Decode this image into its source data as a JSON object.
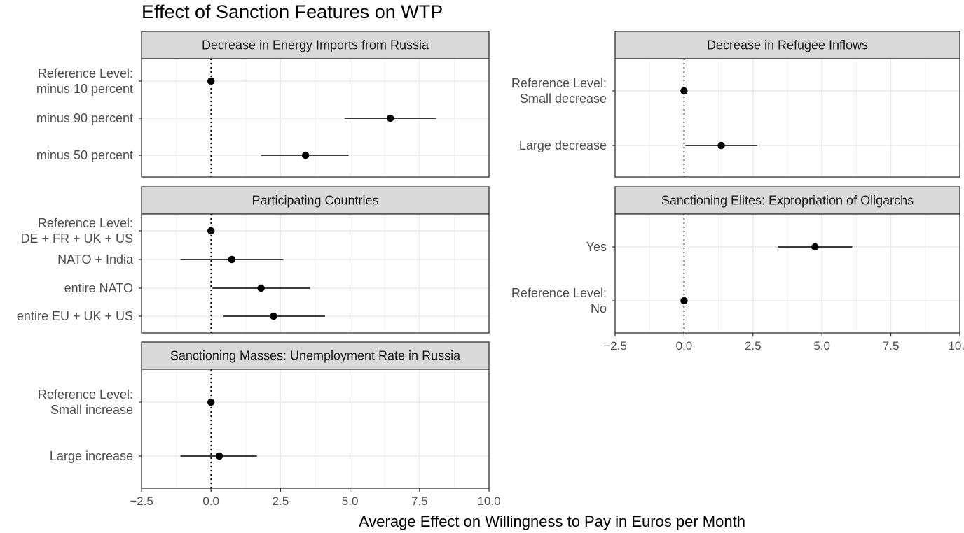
{
  "chart_data": {
    "type": "scatter",
    "subtype": "coefficient plot with confidence intervals (faceted)",
    "title": "Effect of Sanction Features on WTP",
    "xlabel": "Average Effect on Willingness to Pay in Euros per Month",
    "xlim": [
      -2.5,
      10.0
    ],
    "x_ticks": [
      -2.5,
      0.0,
      2.5,
      5.0,
      7.5,
      10.0
    ],
    "x_tick_labels": [
      "−2.5",
      "0.0",
      "2.5",
      "5.0",
      "7.5",
      "10.0"
    ],
    "reference_line_x": 0,
    "grid": true,
    "colors": {
      "point": "#000000",
      "strip_background": "#d9d9d9",
      "panel_border": "#333333",
      "grid": "#ebebeb",
      "axis_text": "#4d4d4d"
    },
    "panels": [
      {
        "title": "Decrease in Energy Imports from Russia",
        "levels": [
          {
            "label": [
              "Reference Level:",
              "minus 10 percent"
            ],
            "estimate": 0.0,
            "ci_low": null,
            "ci_high": null
          },
          {
            "label": [
              "minus 90 percent"
            ],
            "estimate": 6.45,
            "ci_low": 4.8,
            "ci_high": 8.1
          },
          {
            "label": [
              "minus 50 percent"
            ],
            "estimate": 3.4,
            "ci_low": 1.8,
            "ci_high": 4.95
          }
        ]
      },
      {
        "title": "Participating Countries",
        "levels": [
          {
            "label": [
              "Reference Level:",
              "DE + FR + UK + US"
            ],
            "estimate": 0.0,
            "ci_low": null,
            "ci_high": null
          },
          {
            "label": [
              "NATO + India"
            ],
            "estimate": 0.75,
            "ci_low": -1.1,
            "ci_high": 2.6
          },
          {
            "label": [
              "entire NATO"
            ],
            "estimate": 1.8,
            "ci_low": 0.05,
            "ci_high": 3.55
          },
          {
            "label": [
              "entire EU + UK + US"
            ],
            "estimate": 2.25,
            "ci_low": 0.45,
            "ci_high": 4.1
          }
        ]
      },
      {
        "title": "Sanctioning Masses: Unemployment Rate in Russia",
        "levels": [
          {
            "label": [
              "Reference Level:",
              "Small increase"
            ],
            "estimate": 0.0,
            "ci_low": null,
            "ci_high": null
          },
          {
            "label": [
              "Large increase"
            ],
            "estimate": 0.3,
            "ci_low": -1.1,
            "ci_high": 1.65
          }
        ]
      },
      {
        "title": "Decrease in Refugee Inflows",
        "levels": [
          {
            "label": [
              "Reference Level:",
              "Small decrease"
            ],
            "estimate": 0.0,
            "ci_low": null,
            "ci_high": null
          },
          {
            "label": [
              "Large decrease"
            ],
            "estimate": 1.35,
            "ci_low": 0.05,
            "ci_high": 2.65
          }
        ]
      },
      {
        "title": "Sanctioning Elites: Expropriation of Oligarchs",
        "levels": [
          {
            "label": [
              "Yes"
            ],
            "estimate": 4.75,
            "ci_low": 3.4,
            "ci_high": 6.1
          },
          {
            "label": [
              "Reference Level:",
              "No"
            ],
            "estimate": 0.0,
            "ci_low": null,
            "ci_high": null
          }
        ]
      }
    ]
  }
}
